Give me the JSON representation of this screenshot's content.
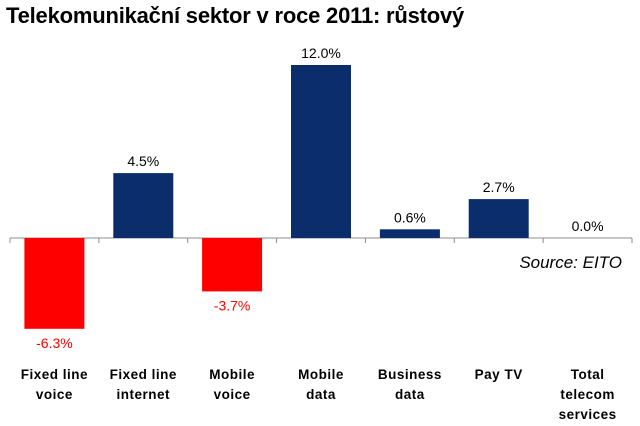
{
  "chart_data": {
    "type": "bar",
    "title": "Telekomunikační sektor v roce 2011: růstový",
    "annotation": "Source: EITO",
    "categories": [
      [
        "Fixed line",
        "voice"
      ],
      [
        "Fixed line",
        "internet"
      ],
      [
        "Mobile",
        "voice"
      ],
      [
        "Mobile",
        "data"
      ],
      [
        "Business",
        "data"
      ],
      [
        "Pay TV"
      ],
      [
        "Total",
        "telecom",
        "services"
      ]
    ],
    "values": [
      -6.3,
      4.5,
      -3.7,
      12.0,
      0.6,
      2.7,
      0.0
    ],
    "value_labels": [
      "-6.3%",
      "4.5%",
      "-3.7%",
      "12.0%",
      "0.6%",
      "2.7%",
      "0.0%"
    ],
    "colors": {
      "positive": "#0c2d6b",
      "negative": "#ff0000",
      "positive_label": "#000000",
      "negative_label": "#ff0000"
    },
    "ylim": [
      -7.5,
      13.5
    ],
    "grid": false,
    "legend": "none"
  }
}
